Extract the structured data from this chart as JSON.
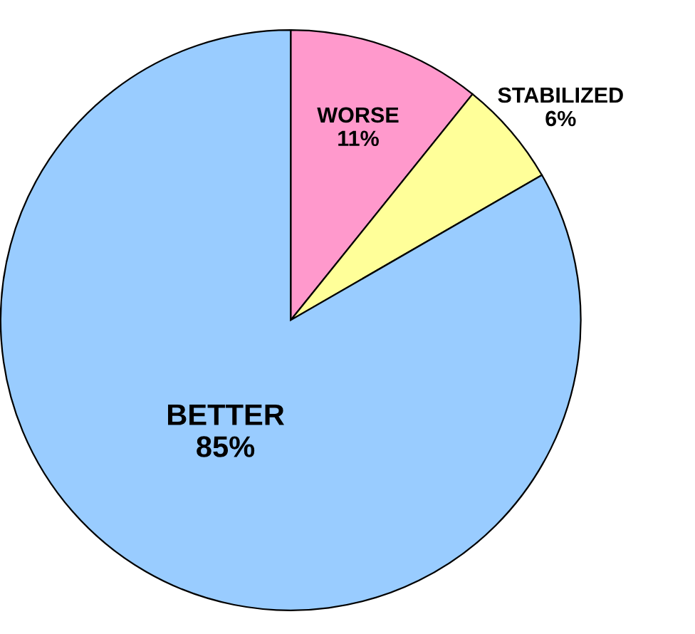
{
  "chart_data": {
    "type": "pie",
    "categories": [
      "WORSE",
      "STABILIZED",
      "BETTER"
    ],
    "values": [
      11,
      6,
      85
    ],
    "value_labels": [
      "11%",
      "6%",
      "85%"
    ],
    "colors": [
      "#ff99cc",
      "#ffff99",
      "#99ccff"
    ]
  }
}
